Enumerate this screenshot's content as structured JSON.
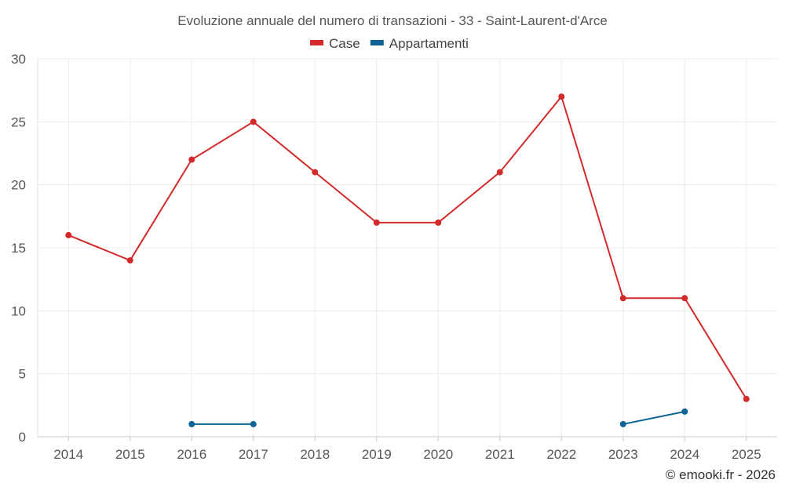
{
  "chart_data": {
    "type": "line",
    "title": "Evoluzione annuale del numero di transazioni - 33 - Saint-Laurent-d'Arce",
    "categories": [
      "2014",
      "2015",
      "2016",
      "2017",
      "2018",
      "2019",
      "2020",
      "2021",
      "2022",
      "2023",
      "2024",
      "2025"
    ],
    "series": [
      {
        "name": "Case",
        "color": "#d42a2a",
        "values": [
          16,
          14,
          22,
          25,
          21,
          17,
          17,
          21,
          27,
          11,
          11,
          3
        ]
      },
      {
        "name": "Appartamenti",
        "color": "#0d6396",
        "values": [
          null,
          null,
          1,
          1,
          null,
          null,
          null,
          null,
          null,
          1,
          2,
          null
        ]
      }
    ],
    "ylim": [
      0,
      30
    ],
    "yticks": [
      0,
      5,
      10,
      15,
      20,
      25,
      30
    ],
    "grid": true,
    "legend": "top-center"
  },
  "footer": {
    "credit": "© emooki.fr - 2026"
  }
}
